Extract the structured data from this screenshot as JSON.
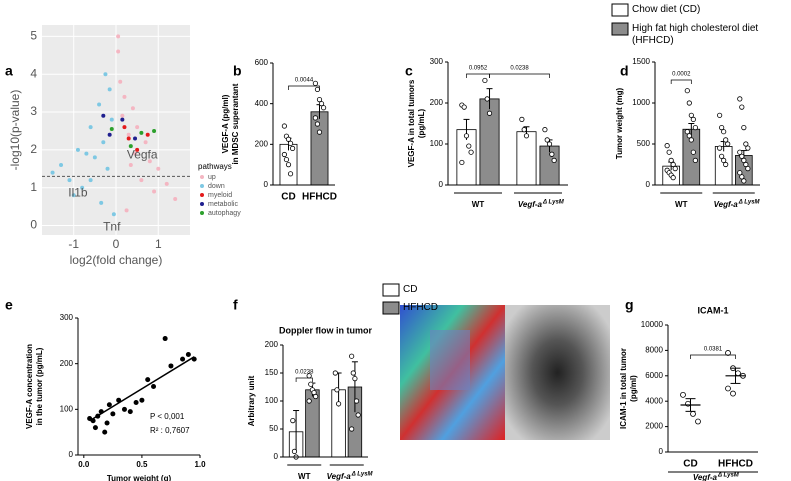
{
  "chart_data": [
    {
      "panel": "a",
      "type": "scatter",
      "grid": true,
      "xlabel": "log2(fold change)",
      "ylabel": [
        "-log10(p-value)"
      ],
      "xlim": [
        -1.75,
        1.75
      ],
      "ylim": [
        -0.25,
        5.3
      ],
      "xticks": [
        -1,
        0,
        1
      ],
      "yticks": [
        0,
        1,
        2,
        3,
        4,
        5
      ],
      "hline": 1.3,
      "legend_title": "pathways",
      "series": [
        {
          "name": "up",
          "color": "#f4b6c2",
          "x": [
            0.05,
            0.1,
            0.15,
            0.2,
            0.3,
            0.35,
            0.4,
            0.5,
            0.6,
            0.7,
            0.8,
            0.9,
            1.0,
            1.2,
            1.4,
            0.25,
            0.45,
            0.05
          ],
          "values": [
            4.6,
            3.8,
            2.9,
            3.4,
            2.4,
            1.6,
            3.1,
            2.6,
            1.2,
            2.2,
            1.7,
            0.9,
            1.5,
            1.1,
            0.7,
            0.4,
            1.9,
            5.0
          ]
        },
        {
          "name": "down",
          "color": "#7ec8e3",
          "x": [
            -1.5,
            -1.3,
            -1.1,
            -0.9,
            -0.8,
            -0.6,
            -0.5,
            -0.4,
            -0.3,
            -0.25,
            -0.2,
            -0.15,
            -0.1,
            -0.6,
            -1.0,
            -0.35,
            -0.05,
            -0.7
          ],
          "values": [
            1.4,
            1.6,
            1.2,
            2.0,
            1.0,
            2.6,
            1.8,
            3.2,
            2.2,
            4.0,
            1.5,
            3.6,
            2.8,
            1.2,
            0.8,
            0.6,
            0.3,
            1.9
          ]
        },
        {
          "name": "myeloid",
          "color": "#e41a1c",
          "x": [
            0.3,
            0.5,
            0.75,
            0.2
          ],
          "values": [
            2.3,
            2.0,
            2.4,
            2.6
          ]
        },
        {
          "name": "metabolic",
          "color": "#1f1f8f",
          "x": [
            -0.3,
            0.45,
            0.15,
            -0.15
          ],
          "values": [
            2.9,
            2.3,
            2.8,
            2.4
          ]
        },
        {
          "name": "autophagy",
          "color": "#2ca02c",
          "x": [
            0.6,
            0.9,
            0.35,
            -0.1
          ],
          "values": [
            2.45,
            2.5,
            2.1,
            2.55
          ]
        }
      ],
      "annotations": [
        {
          "text": "Vegfa",
          "x": 0.62,
          "y": 1.85
        },
        {
          "text": "Il1b",
          "x": -0.9,
          "y": 0.85
        },
        {
          "text": "Tnf",
          "x": -0.1,
          "y": -0.05
        }
      ]
    },
    {
      "panel": "b",
      "type": "bar",
      "ylabel": [
        "VEGF-A (pg/ml)",
        "in MDSC superantant"
      ],
      "ylim": [
        0,
        600
      ],
      "yticks": [
        0,
        200,
        400,
        600
      ],
      "categories": [
        "CD",
        "HFHCD"
      ],
      "values": [
        200,
        360
      ],
      "errors": [
        30,
        35
      ],
      "colors": [
        "#ffffff",
        "#8c8c8c"
      ],
      "points": [
        [
          290,
          240,
          225,
          205,
          180,
          150,
          125,
          100,
          55
        ],
        [
          500,
          470,
          420,
          400,
          380,
          330,
          300,
          260
        ]
      ],
      "p_values": [
        "0.0044"
      ]
    },
    {
      "panel": "c",
      "type": "bar",
      "ylabel": [
        "VEGF-A in total tumors",
        "(pg/mL)"
      ],
      "ylim": [
        0,
        300
      ],
      "yticks": [
        0,
        100,
        200,
        300
      ],
      "categories": [
        "WT",
        "Vegf-a"
      ],
      "category_superscripts": [
        null,
        "Δ LysM"
      ],
      "series": [
        {
          "name": "Chow diet (CD)",
          "color": "#ffffff",
          "values": [
            135,
            130
          ],
          "errors": [
            25,
            12
          ],
          "points": [
            [
              195,
              190,
              120,
              95,
              80,
              55
            ],
            [
              160,
              135,
              120
            ]
          ]
        },
        {
          "name": "High fat high cholesterol diet (HFHCD)",
          "color": "#8c8c8c",
          "values": [
            210,
            95
          ],
          "errors": [
            25,
            15
          ],
          "points": [
            [
              255,
              210,
              175
            ],
            [
              135,
              110,
              100,
              75,
              60
            ]
          ]
        }
      ],
      "p_values": [
        "0.0952",
        "0.0238"
      ]
    },
    {
      "panel": "d",
      "type": "bar",
      "ylabel": [
        "Tumor weight (mg)"
      ],
      "ylim": [
        0,
        1500
      ],
      "yticks": [
        0,
        500,
        1000,
        1500
      ],
      "categories": [
        "WT",
        "Vegf-a"
      ],
      "category_superscripts": [
        null,
        "Δ LysM"
      ],
      "series": [
        {
          "color": "#ffffff",
          "values": [
            230,
            470
          ],
          "errors": [
            50,
            60
          ],
          "points": [
            [
              480,
              400,
              300,
              250,
              200,
              180,
              150,
              120,
              90
            ],
            [
              850,
              700,
              650,
              550,
              500,
              450,
              350,
              300,
              250
            ]
          ]
        },
        {
          "color": "#8c8c8c",
          "values": [
            680,
            360
          ],
          "errors": [
            70,
            60
          ],
          "points": [
            [
              1150,
              1000,
              850,
              800,
              700,
              650,
              600,
              550,
              400,
              300
            ],
            [
              1050,
              950,
              700,
              500,
              450,
              400,
              350,
              300,
              250,
              200,
              150,
              100,
              50
            ]
          ]
        }
      ],
      "p_values": [
        "0.0002"
      ]
    },
    {
      "panel": "e",
      "type": "scatter",
      "xlabel": "Tumor weight (g)",
      "ylabel": [
        "VEGF-A concentration",
        "in the tumor (pg/mL)"
      ],
      "xlim": [
        -0.05,
        1.0
      ],
      "ylim": [
        0,
        300
      ],
      "xticks": [
        {
          "value": 0,
          "label": "0.0"
        },
        {
          "value": 0.5,
          "label": "0.5"
        },
        {
          "value": 1,
          "label": "1.0"
        }
      ],
      "yticks": [
        0,
        100,
        200,
        300
      ],
      "x": [
        0.05,
        0.08,
        0.1,
        0.12,
        0.15,
        0.18,
        0.2,
        0.22,
        0.25,
        0.3,
        0.35,
        0.4,
        0.45,
        0.5,
        0.55,
        0.6,
        0.7,
        0.75,
        0.85,
        0.9,
        0.95
      ],
      "values": [
        80,
        75,
        60,
        85,
        95,
        50,
        70,
        110,
        90,
        120,
        100,
        95,
        115,
        120,
        165,
        150,
        255,
        195,
        210,
        220,
        210
      ],
      "fit": {
        "x": [
          0.05,
          0.95
        ],
        "y": [
          75,
          215
        ]
      },
      "stats": [
        "P < 0,001",
        "R² : 0,7607"
      ]
    },
    {
      "panel": "f",
      "type": "bar",
      "title": "Doppler flow in tumor",
      "ylabel": [
        "Arbitrary unit"
      ],
      "ylim": [
        0,
        200
      ],
      "yticks": [
        0,
        50,
        100,
        150,
        200
      ],
      "categories": [
        "WT",
        "Vegf-a"
      ],
      "category_superscripts": [
        null,
        "Δ LysM"
      ],
      "series": [
        {
          "name": "CD",
          "color": "#ffffff",
          "values": [
            45,
            120
          ],
          "errors": [
            38,
            30
          ],
          "points": [
            [
              65,
              10,
              0
            ],
            [
              150,
              120,
              95
            ]
          ]
        },
        {
          "name": "HFHCD",
          "color": "#8c8c8c",
          "values": [
            120,
            125
          ],
          "errors": [
            12,
            45
          ],
          "points": [
            [
              145,
              130,
              120,
              115,
              108,
              100
            ],
            [
              180,
              150,
              140,
              100,
              75,
              50
            ]
          ]
        }
      ],
      "p_values": [
        "0.0238"
      ]
    },
    {
      "panel": "g",
      "type": "dot",
      "title": "ICAM-1",
      "ylabel": [
        "ICAM-1 in total tumor",
        "(pg/ml)"
      ],
      "ylim": [
        0,
        10000
      ],
      "yticks": [
        0,
        2000,
        4000,
        6000,
        8000,
        10000
      ],
      "categories": [
        "CD",
        "HFHCD"
      ],
      "values": [
        3700,
        6000
      ],
      "errors": [
        500,
        600
      ],
      "points": [
        [
          4500,
          3800,
          3000,
          2400
        ],
        [
          7800,
          6600,
          6200,
          6000,
          5000,
          4600
        ]
      ],
      "group_label": "Vegf-a",
      "group_superscript": "Δ LysM",
      "p_values": [
        "0.0381"
      ]
    }
  ]
}
